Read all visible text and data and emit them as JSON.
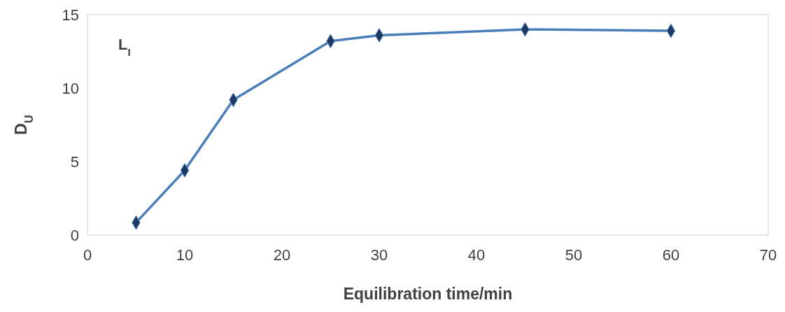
{
  "chart_data": {
    "type": "line",
    "x": [
      5,
      10,
      15,
      25,
      30,
      45,
      60
    ],
    "series": [
      {
        "color": "#4a7ebb",
        "values": [
          0.85,
          4.4,
          9.2,
          13.2,
          13.6,
          14.0,
          13.9
        ]
      }
    ],
    "xlabel": "Equilibration time/min",
    "ylabel": "D$_{U}$",
    "annotations": [
      "L$_{I}$"
    ],
    "xlim": [
      0,
      70
    ],
    "xticks": [
      0,
      10,
      20,
      30,
      40,
      50,
      60,
      70
    ],
    "ylim": [
      0,
      15
    ],
    "yticks": [
      0,
      5,
      10,
      15
    ],
    "grid": false,
    "marker": "diamond",
    "line_style": "solid"
  }
}
